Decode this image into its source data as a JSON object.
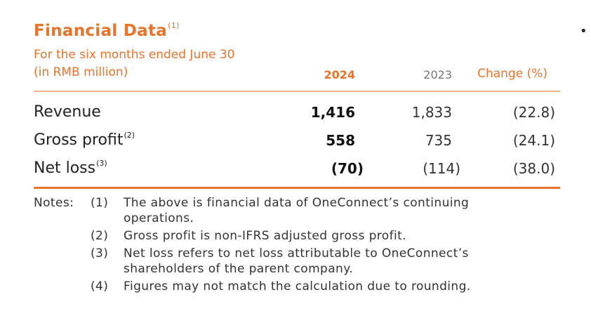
{
  "title": "Financial Data",
  "title_note": "(1)",
  "subtitle_line1": "For the six months ended June 30",
  "subtitle_line2": "(in RMB million)",
  "columns": {
    "current": "2024",
    "prior": "2023",
    "change": "Change (%)"
  },
  "rows": [
    {
      "label": "Revenue",
      "note": "",
      "current": "1,416",
      "prior": "1,833",
      "change": "(22.8)"
    },
    {
      "label": "Gross profit",
      "note": "(2)",
      "current": "558",
      "prior": "735",
      "change": "(24.1)"
    },
    {
      "label": "Net loss",
      "note": "(3)",
      "current": "(70)",
      "prior": "(114)",
      "change": "(38.0)"
    }
  ],
  "notes": {
    "prefix": "Notes:",
    "items": [
      {
        "num": "(1)",
        "line1": "The above is financial data of OneConnect’s continuing",
        "line2": "operations."
      },
      {
        "num": "(2)",
        "line1": "Gross profit is non-IFRS adjusted gross profit.",
        "line2": ""
      },
      {
        "num": "(3)",
        "line1": "Net loss refers to net loss attributable to OneConnect’s",
        "line2": "shareholders of the parent company."
      },
      {
        "num": "(4)",
        "line1": "Figures may not match the calculation due to rounding.",
        "line2": ""
      }
    ]
  },
  "bullet": "•",
  "colors": {
    "accent": "#e8742c"
  }
}
